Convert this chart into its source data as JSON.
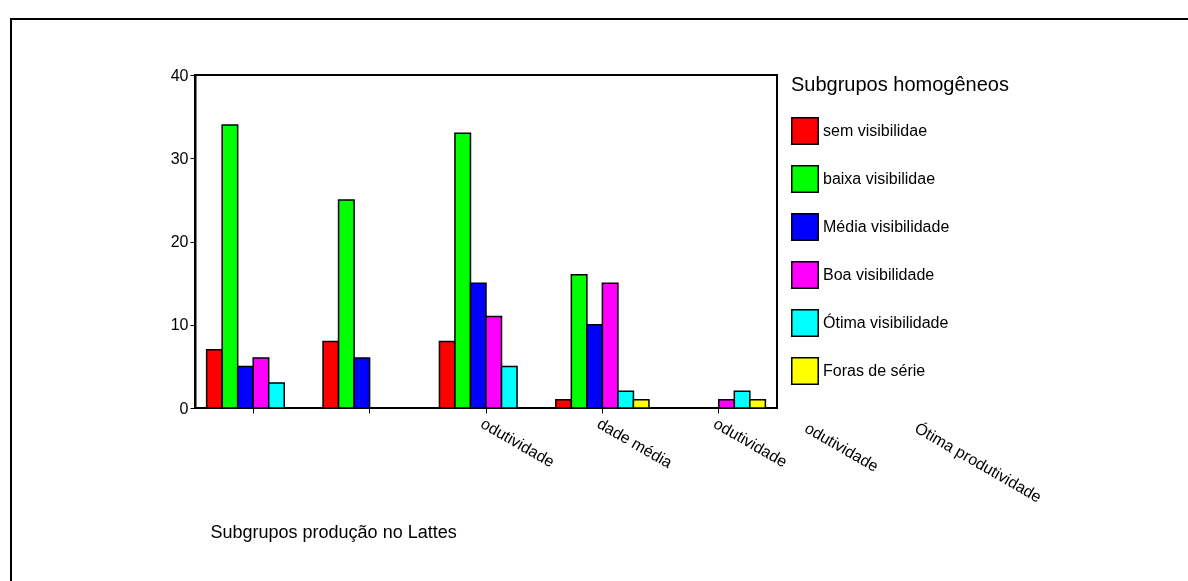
{
  "chart_data": {
    "type": "bar",
    "xlabel": "Subgrupos produção no Lattes",
    "legend_title": "Subgrupos homogêneos",
    "legend": "right",
    "grid": false,
    "categories": [
      null,
      null,
      "odutividade",
      "dade média",
      "odutividade"
    ],
    "ylim": [
      0,
      40
    ],
    "yticks": [
      0,
      10,
      20,
      30,
      40
    ],
    "series": [
      {
        "name": "sem visibilidae",
        "color": "#ff0000",
        "values": [
          7,
          8,
          8,
          1,
          null
        ]
      },
      {
        "name": "baixa visibilidae",
        "color": "#00ff00",
        "values": [
          34,
          25,
          33,
          16,
          null
        ]
      },
      {
        "name": "Média visibilidade",
        "color": "#0000ff",
        "values": [
          5,
          6,
          15,
          10,
          null
        ]
      },
      {
        "name": "Boa visibilidade",
        "color": "#ff00ff",
        "values": [
          6,
          null,
          11,
          15,
          1
        ]
      },
      {
        "name": "Ótima visibilidade",
        "color": "#00ffff",
        "values": [
          3,
          null,
          5,
          2,
          2
        ]
      },
      {
        "name": "Foras de série",
        "color": "#ffff00",
        "values": [
          null,
          null,
          null,
          1,
          1
        ]
      }
    ],
    "annotations": [
      "odutividade",
      "Ótima produtividade"
    ]
  }
}
